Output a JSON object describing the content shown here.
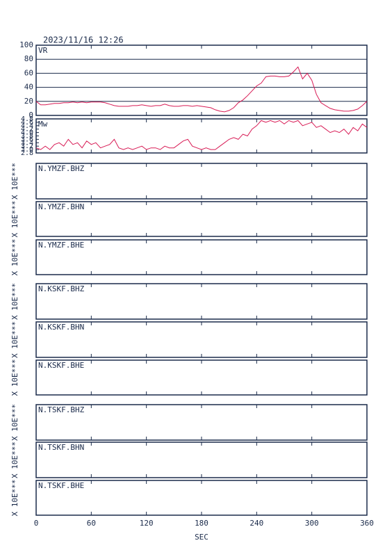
{
  "chart_data": {
    "type": "line",
    "title": "2023/11/16 12:26",
    "xlabel": "SEC",
    "xlim": [
      0,
      360
    ],
    "xticks": [
      0,
      60,
      120,
      180,
      240,
      300,
      360
    ],
    "x": [
      0,
      5,
      10,
      15,
      20,
      25,
      30,
      35,
      40,
      45,
      50,
      55,
      60,
      65,
      70,
      75,
      80,
      85,
      90,
      95,
      100,
      105,
      110,
      115,
      120,
      125,
      130,
      135,
      140,
      145,
      150,
      155,
      160,
      165,
      170,
      175,
      180,
      185,
      190,
      195,
      200,
      205,
      210,
      215,
      220,
      225,
      230,
      235,
      240,
      245,
      250,
      255,
      260,
      265,
      270,
      275,
      280,
      285,
      290,
      295,
      300,
      305,
      310,
      315,
      320,
      325,
      330,
      335,
      340,
      345,
      350,
      355,
      360
    ],
    "panels": [
      {
        "label": "VR",
        "ylim": [
          0,
          100
        ],
        "yticks": [
          0,
          20,
          40,
          60,
          80,
          100
        ],
        "grid": true,
        "color": "#d81b55",
        "values": [
          20,
          15,
          15,
          16,
          17,
          17,
          18,
          18,
          19,
          18,
          19,
          18,
          19,
          19,
          19,
          18,
          16,
          14,
          13,
          13,
          13,
          14,
          14,
          15,
          14,
          13,
          14,
          14,
          16,
          14,
          13,
          13,
          14,
          14,
          13,
          14,
          13,
          12,
          11,
          8,
          6,
          5,
          7,
          11,
          18,
          22,
          28,
          35,
          42,
          46,
          55,
          56,
          56,
          55,
          55,
          56,
          62,
          69,
          52,
          60,
          50,
          30,
          18,
          14,
          10,
          8,
          7,
          6,
          6,
          7,
          9,
          14,
          20
        ]
      },
      {
        "label": "Mw",
        "ylim": [
          2.8,
          4.8
        ],
        "yticks": [
          2.8,
          {
            "value": 3,
            "label": "3.0"
          },
          3.2,
          3.4,
          3.6,
          3.8,
          {
            "value": 4,
            "label": "4.0"
          },
          4.2,
          4.4,
          4.6,
          4.8
        ],
        "grid": false,
        "color": "#d81b55",
        "values": [
          3.1,
          3.0,
          3.2,
          3.0,
          3.3,
          3.4,
          3.2,
          3.6,
          3.3,
          3.4,
          3.1,
          3.5,
          3.3,
          3.4,
          3.1,
          3.2,
          3.3,
          3.6,
          3.1,
          3.0,
          3.1,
          3.0,
          3.1,
          3.2,
          3.0,
          3.1,
          3.1,
          3.0,
          3.2,
          3.1,
          3.1,
          3.3,
          3.5,
          3.6,
          3.2,
          3.1,
          3.0,
          3.1,
          3.0,
          3.0,
          3.2,
          3.4,
          3.6,
          3.7,
          3.6,
          3.9,
          3.8,
          4.2,
          4.4,
          4.7,
          4.6,
          4.7,
          4.6,
          4.7,
          4.5,
          4.7,
          4.6,
          4.7,
          4.4,
          4.5,
          4.6,
          4.3,
          4.4,
          4.2,
          4.0,
          4.1,
          4.0,
          4.2,
          3.9,
          4.3,
          4.1,
          4.5,
          4.3
        ]
      },
      {
        "label": "N.YMZF.BHZ",
        "ylabel": "X 10E***"
      },
      {
        "label": "N.YMZF.BHN",
        "ylabel": "X 10E***"
      },
      {
        "label": "N.YMZF.BHE",
        "ylabel": "X 10E***"
      },
      {
        "label": "N.KSKF.BHZ",
        "ylabel": "X 10E***"
      },
      {
        "label": "N.KSKF.BHN",
        "ylabel": "X 10E***"
      },
      {
        "label": "N.KSKF.BHE",
        "ylabel": "X 10E***"
      },
      {
        "label": "N.TSKF.BHZ",
        "ylabel": "X 10E***"
      },
      {
        "label": "N.TSKF.BHN",
        "ylabel": "X 10E***"
      },
      {
        "label": "N.TSKF.BHE",
        "ylabel": "X 10E***"
      }
    ]
  }
}
